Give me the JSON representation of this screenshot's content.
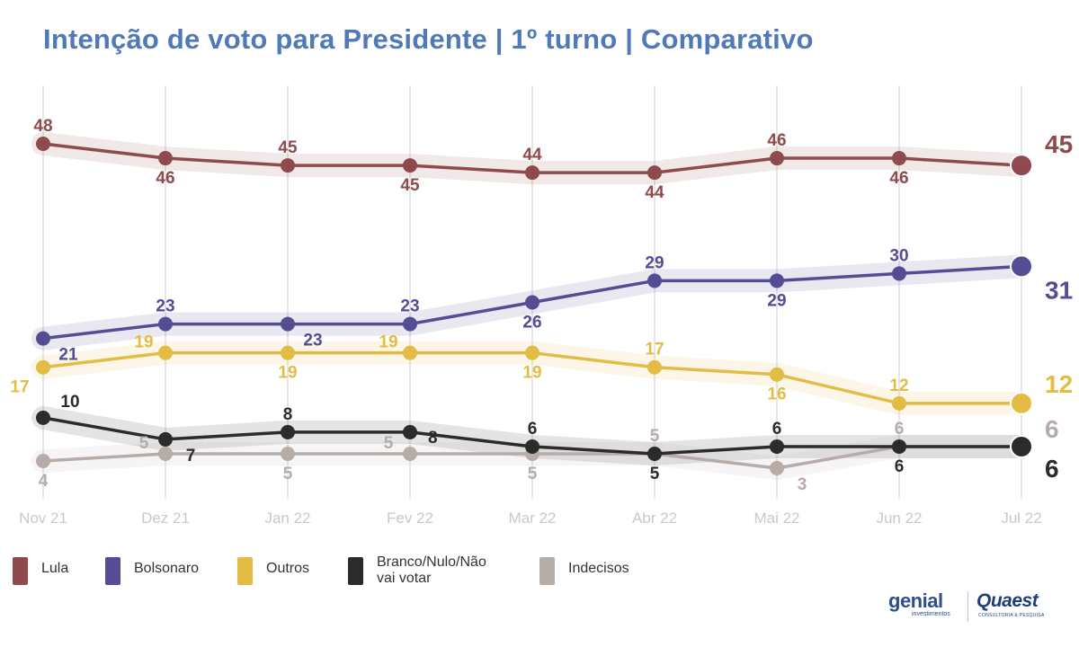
{
  "title": "Intenção de voto para Presidente | 1º turno | Comparativo",
  "chart_data": {
    "type": "line",
    "title": "Intenção de voto para Presidente | 1º turno | Comparativo",
    "categories": [
      "Nov 21",
      "Dez 21",
      "Jan 22",
      "Fev 22",
      "Mar 22",
      "Abr 22",
      "Mai 22",
      "Jun 22",
      "Jul 22"
    ],
    "ylim": [
      0,
      50
    ],
    "grid": "vertical",
    "legend_position": "bottom",
    "series": [
      {
        "name": "Lula",
        "color": "#8f4a4e",
        "values": [
          48,
          46,
          45,
          45,
          44,
          44,
          46,
          46,
          45
        ],
        "labels": [
          "48",
          "46",
          "45",
          "45",
          "44",
          "44",
          "46",
          "46",
          "45"
        ],
        "label_pos": [
          "above",
          "below",
          "above",
          "below",
          "above",
          "below",
          "above",
          "below",
          "right"
        ]
      },
      {
        "name": "Bolsonaro",
        "color": "#554d94",
        "values": [
          21,
          23,
          23,
          23,
          26,
          29,
          29,
          30,
          31
        ],
        "labels": [
          "21",
          "23",
          "23",
          "23",
          "26",
          "29",
          "29",
          "30",
          "31"
        ],
        "label_pos": [
          "below-right",
          "above",
          "below-right",
          "above",
          "below",
          "above",
          "below",
          "above",
          "right"
        ]
      },
      {
        "name": "Outros",
        "color": "#e3bc46",
        "values": [
          17,
          19,
          19,
          19,
          19,
          17,
          16,
          12,
          12
        ],
        "labels": [
          "17",
          "19",
          "19",
          "19",
          "19",
          "17",
          "16",
          "12",
          "12"
        ],
        "label_pos": [
          "below-left",
          "above-left",
          "below",
          "above-left",
          "below",
          "above",
          "below",
          "above",
          "right"
        ]
      },
      {
        "name": "Branco/Nulo/Não vai votar",
        "color": "#2b2b2b",
        "values": [
          10,
          7,
          8,
          8,
          6,
          5,
          6,
          6,
          6
        ],
        "labels": [
          "10",
          "7",
          "8",
          "8",
          "6",
          "5",
          "6",
          "6",
          "6"
        ],
        "label_pos": [
          "above-right",
          "below-right",
          "above",
          "right",
          "above",
          "below",
          "above",
          "below",
          "right-low"
        ]
      },
      {
        "name": "Indecisos",
        "color": "#b6aca8",
        "values": [
          4,
          5,
          5,
          5,
          5,
          5,
          3,
          6,
          6
        ],
        "labels": [
          "4",
          "5",
          "5",
          "5",
          "5",
          "5",
          "3",
          "6",
          "6"
        ],
        "label_pos": [
          "below",
          "above-left",
          "below",
          "above-left",
          "below",
          "above",
          "below-right",
          "above",
          "right-high"
        ]
      }
    ]
  },
  "legend": [
    {
      "label": "Lula",
      "color": "#8f4a4e"
    },
    {
      "label": "Bolsonaro",
      "color": "#554d94"
    },
    {
      "label": "Outros",
      "color": "#e3bc46"
    },
    {
      "label": "Branco/Nulo/Não vai votar",
      "color": "#2b2b2b"
    },
    {
      "label": "Indecisos",
      "color": "#b6aca8"
    }
  ],
  "logos": {
    "genial": "genial",
    "genial_sub": "investimentos",
    "quaest": "Quaest",
    "quaest_sub": "CONSULTORIA & PESQUISA"
  }
}
